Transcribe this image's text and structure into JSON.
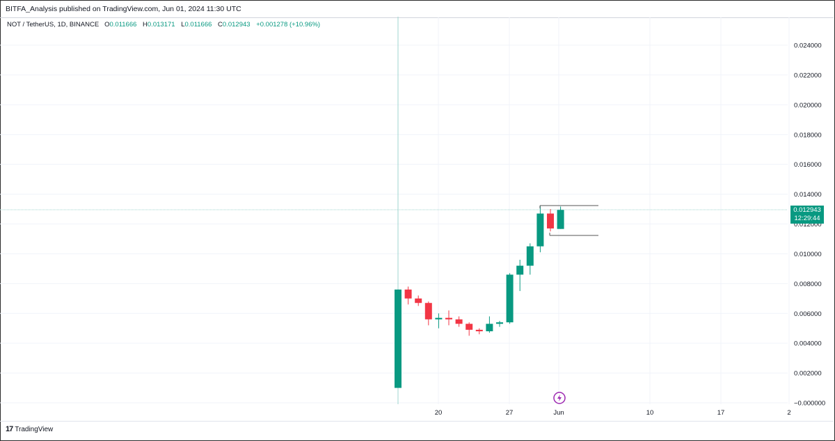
{
  "publish_bar": "BITFA_Analysis published on TradingView.com, Jun 01, 2024 11:30 UTC",
  "legend": {
    "symbol": "NOT / TetherUS, 1D, BINANCE",
    "open_label": "O",
    "open": "0.011666",
    "high_label": "H",
    "high": "0.013171",
    "low_label": "L",
    "low": "0.011666",
    "close_label": "C",
    "close": "0.012943",
    "change": "+0.001278 (+10.96%)"
  },
  "last_price": {
    "price": "0.012943",
    "countdown": "12:29:44"
  },
  "logo": {
    "mark": "17",
    "text": "TradingView"
  },
  "colors": {
    "up": "#089981",
    "down": "#f23645",
    "grid": "#f0f3fa",
    "crosshair": "#9fd6cf",
    "last_line": "#9fd6cf"
  },
  "chart_data": {
    "type": "candlestick",
    "symbol": "NOT / TetherUS, 1D, BINANCE",
    "y_ticks": [
      "0.024000",
      "0.022000",
      "0.020000",
      "0.018000",
      "0.016000",
      "0.014000",
      "0.012000",
      "0.010000",
      "0.008000",
      "0.006000",
      "0.004000",
      "0.002000",
      "−0.000000"
    ],
    "ylim": [
      0,
      0.0245
    ],
    "x_ticks": [
      "20",
      "27",
      "Jun",
      "10",
      "17",
      "2"
    ],
    "candles": [
      {
        "o": 0.001,
        "h": 0.0076,
        "l": 0.001,
        "c": 0.0076
      },
      {
        "o": 0.0076,
        "h": 0.0078,
        "l": 0.0066,
        "c": 0.007
      },
      {
        "o": 0.007,
        "h": 0.0072,
        "l": 0.0065,
        "c": 0.0067
      },
      {
        "o": 0.0067,
        "h": 0.0068,
        "l": 0.0052,
        "c": 0.0056
      },
      {
        "o": 0.0056,
        "h": 0.006,
        "l": 0.005,
        "c": 0.0057
      },
      {
        "o": 0.0057,
        "h": 0.0062,
        "l": 0.0052,
        "c": 0.0056
      },
      {
        "o": 0.0056,
        "h": 0.0058,
        "l": 0.0051,
        "c": 0.0053
      },
      {
        "o": 0.0053,
        "h": 0.0054,
        "l": 0.0045,
        "c": 0.0049
      },
      {
        "o": 0.0049,
        "h": 0.005,
        "l": 0.0046,
        "c": 0.0048
      },
      {
        "o": 0.0048,
        "h": 0.0058,
        "l": 0.0047,
        "c": 0.0053
      },
      {
        "o": 0.0053,
        "h": 0.0055,
        "l": 0.0051,
        "c": 0.0054
      },
      {
        "o": 0.0054,
        "h": 0.0087,
        "l": 0.0053,
        "c": 0.0086
      },
      {
        "o": 0.0086,
        "h": 0.0096,
        "l": 0.0075,
        "c": 0.0092
      },
      {
        "o": 0.0092,
        "h": 0.0107,
        "l": 0.0086,
        "c": 0.0105
      },
      {
        "o": 0.0105,
        "h": 0.0132,
        "l": 0.0101,
        "c": 0.0127
      },
      {
        "o": 0.0127,
        "h": 0.013,
        "l": 0.0115,
        "c": 0.0117
      },
      {
        "o": 0.011666,
        "h": 0.013171,
        "l": 0.011666,
        "c": 0.012943
      }
    ]
  }
}
